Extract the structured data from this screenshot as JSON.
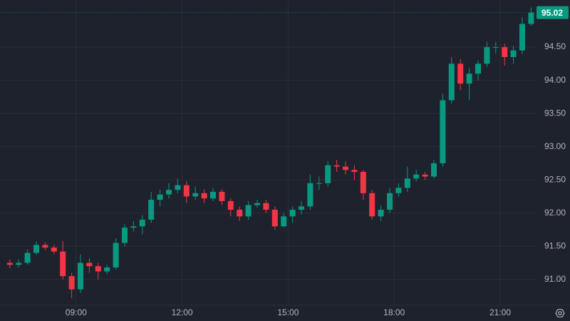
{
  "chart_data": {
    "type": "candlestick",
    "x": [
      "07:00",
      "07:15",
      "07:30",
      "07:45",
      "08:00",
      "08:15",
      "08:30",
      "08:45",
      "09:00",
      "09:15",
      "09:30",
      "09:45",
      "10:00",
      "10:15",
      "10:30",
      "10:45",
      "11:00",
      "11:15",
      "11:30",
      "11:45",
      "12:00",
      "12:15",
      "12:30",
      "12:45",
      "13:00",
      "13:15",
      "13:30",
      "13:45",
      "14:00",
      "14:15",
      "14:30",
      "14:45",
      "15:00",
      "15:15",
      "15:30",
      "15:45",
      "16:00",
      "16:15",
      "16:30",
      "16:45",
      "17:00",
      "17:15",
      "17:30",
      "17:45",
      "18:00",
      "18:15",
      "18:30",
      "18:45",
      "19:00",
      "19:15",
      "19:30",
      "19:45",
      "20:00",
      "20:15",
      "20:30",
      "20:45",
      "21:00",
      "21:15",
      "21:30",
      "21:45"
    ],
    "open": [
      91.25,
      91.22,
      91.25,
      91.4,
      91.52,
      91.48,
      91.42,
      91.05,
      90.85,
      91.25,
      91.2,
      91.12,
      91.18,
      91.55,
      91.78,
      91.8,
      91.9,
      92.2,
      92.28,
      92.35,
      92.42,
      92.25,
      92.3,
      92.22,
      92.32,
      92.18,
      92.05,
      91.95,
      92.12,
      92.15,
      92.05,
      91.8,
      91.95,
      92.05,
      92.1,
      92.45,
      92.45,
      92.72,
      92.7,
      92.65,
      92.62,
      92.3,
      91.95,
      92.05,
      92.3,
      92.38,
      92.52,
      92.58,
      92.55,
      92.75,
      93.7,
      94.25,
      93.95,
      94.1,
      94.25,
      94.5,
      94.5,
      94.35,
      94.45,
      94.85
    ],
    "high": [
      91.3,
      91.3,
      91.45,
      91.57,
      91.56,
      91.52,
      91.58,
      91.1,
      91.38,
      91.32,
      91.25,
      91.22,
      91.62,
      91.83,
      91.88,
      91.97,
      92.32,
      92.35,
      92.45,
      92.52,
      92.48,
      92.4,
      92.36,
      92.38,
      92.36,
      92.22,
      92.1,
      92.18,
      92.2,
      92.2,
      92.1,
      92.0,
      92.1,
      92.18,
      92.58,
      92.55,
      92.78,
      92.8,
      92.78,
      92.72,
      92.65,
      92.35,
      92.12,
      92.38,
      92.45,
      92.7,
      92.65,
      92.62,
      92.8,
      93.8,
      94.35,
      94.32,
      94.18,
      94.3,
      94.58,
      94.58,
      94.55,
      94.52,
      94.95,
      95.1
    ],
    "low": [
      91.17,
      91.18,
      91.22,
      91.37,
      91.44,
      91.38,
      91.0,
      90.72,
      90.8,
      91.1,
      91.0,
      91.08,
      91.15,
      91.5,
      91.72,
      91.68,
      91.85,
      92.1,
      92.22,
      92.3,
      92.15,
      92.2,
      92.15,
      92.18,
      92.12,
      91.95,
      91.88,
      91.9,
      92.08,
      92.0,
      91.75,
      91.78,
      91.85,
      91.98,
      92.05,
      92.35,
      92.4,
      92.62,
      92.58,
      92.5,
      92.2,
      91.9,
      91.88,
      92.0,
      92.25,
      92.32,
      92.48,
      92.5,
      92.52,
      92.7,
      93.65,
      93.85,
      93.7,
      94.0,
      94.2,
      94.4,
      94.22,
      94.25,
      94.4,
      94.82
    ],
    "close": [
      91.22,
      91.25,
      91.4,
      91.52,
      91.48,
      91.42,
      91.05,
      90.85,
      91.25,
      91.2,
      91.12,
      91.18,
      91.55,
      91.78,
      91.8,
      91.9,
      92.2,
      92.28,
      92.35,
      92.42,
      92.25,
      92.3,
      92.22,
      92.32,
      92.18,
      92.05,
      91.95,
      92.12,
      92.15,
      92.05,
      91.8,
      91.95,
      92.05,
      92.1,
      92.45,
      92.45,
      92.72,
      92.7,
      92.65,
      92.62,
      92.3,
      91.95,
      92.05,
      92.3,
      92.38,
      92.52,
      92.58,
      92.55,
      92.75,
      93.7,
      94.25,
      93.95,
      94.1,
      94.25,
      94.5,
      94.5,
      94.35,
      94.45,
      94.85,
      95.02
    ],
    "up_color": "#089981",
    "down_color": "#f23645",
    "ylim": [
      90.61,
      95.21
    ],
    "yticks": [
      {
        "value": 91,
        "label": "91.00"
      },
      {
        "value": 91.5,
        "label": "91.50"
      },
      {
        "value": 92,
        "label": "92.00"
      },
      {
        "value": 92.5,
        "label": "92.50"
      },
      {
        "value": 93,
        "label": "93.00"
      },
      {
        "value": 93.5,
        "label": "93.50"
      },
      {
        "value": 94,
        "label": "94.00"
      },
      {
        "value": 94.5,
        "label": "94.50"
      }
    ],
    "xticks": [
      "09:00",
      "12:00",
      "15:00",
      "18:00",
      "21:00"
    ],
    "last_price": 95.02,
    "grid": true
  }
}
